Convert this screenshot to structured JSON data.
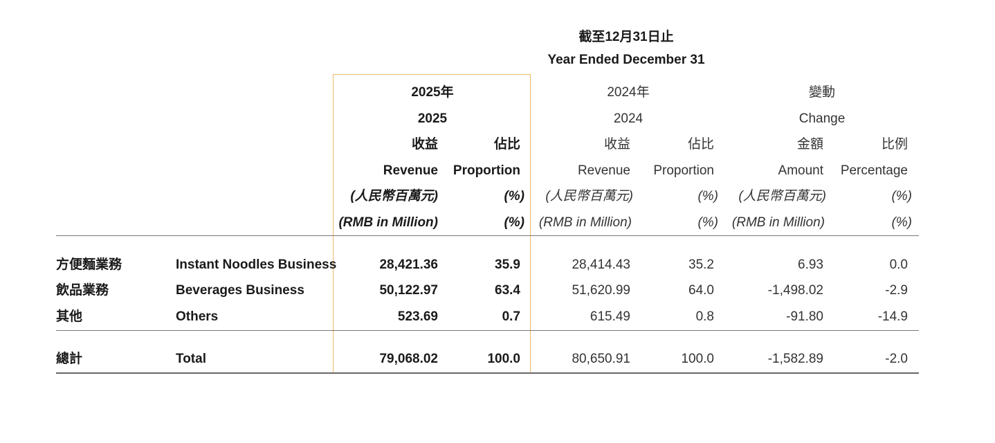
{
  "header": {
    "zh": "截至12月31日止",
    "en": "Year Ended December 31"
  },
  "groups": {
    "y2025": {
      "zh": "2025年",
      "en": "2025"
    },
    "y2024": {
      "zh": "2024年",
      "en": "2024"
    },
    "change": {
      "zh": "變動",
      "en": "Change"
    }
  },
  "subheaders": {
    "revenue_zh": "收益",
    "revenue_en": "Revenue",
    "proportion_zh": "佔比",
    "proportion_en": "Proportion",
    "amount_zh": "金額",
    "amount_en": "Amount",
    "percentage_zh": "比例",
    "percentage_en": "Percentage",
    "unit_zh": "(人民幣百萬元)",
    "unit_en": "(RMB in Million)",
    "pct_unit": "(%)"
  },
  "rows": [
    {
      "zh": "方便麵業務",
      "en": "Instant Noodles Business",
      "rev2025": "28,421.36",
      "prop2025": "35.9",
      "rev2024": "28,414.43",
      "prop2024": "35.2",
      "amount": "6.93",
      "pct": "0.0"
    },
    {
      "zh": "飲品業務",
      "en": "Beverages Business",
      "rev2025": "50,122.97",
      "prop2025": "63.4",
      "rev2024": "51,620.99",
      "prop2024": "64.0",
      "amount": "-1,498.02",
      "pct": "-2.9"
    },
    {
      "zh": "其他",
      "en": "Others",
      "rev2025": "523.69",
      "prop2025": "0.7",
      "rev2024": "615.49",
      "prop2024": "0.8",
      "amount": "-91.80",
      "pct": "-14.9"
    }
  ],
  "total": {
    "zh": "總計",
    "en": "Total",
    "rev2025": "79,068.02",
    "prop2025": "100.0",
    "rev2024": "80,650.91",
    "prop2024": "100.0",
    "amount": "-1,582.89",
    "pct": "-2.0"
  }
}
